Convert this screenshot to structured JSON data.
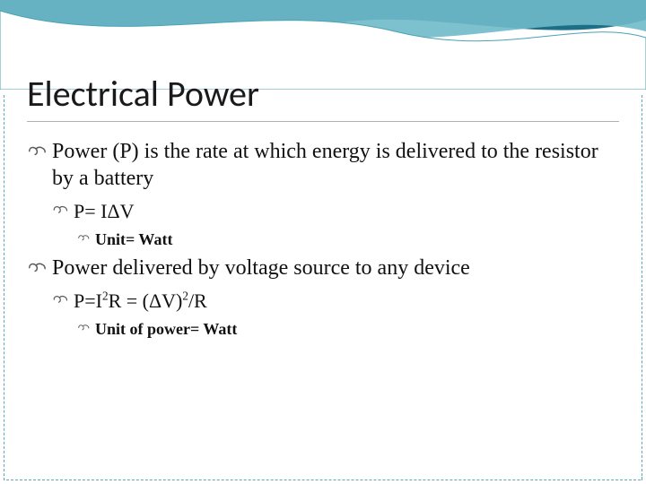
{
  "slide": {
    "title": "Electrical Power",
    "title_fontsize": 40,
    "title_color": "#1a1a1a",
    "bullets": [
      {
        "level": 1,
        "text": "Power (P) is the rate at which energy is delivered to the resistor by a battery",
        "fontsize": 24
      },
      {
        "level": 2,
        "text": "P= IΔV",
        "fontsize": 22
      },
      {
        "level": 3,
        "text": "Unit= Watt",
        "fontsize": 18
      },
      {
        "level": 1,
        "text": "Power delivered by voltage source to any device",
        "fontsize": 24
      },
      {
        "level": 2,
        "html": "P=I<span class='sup'>2</span>R = (ΔV)<span class='sup'>2</span>/R",
        "text_plain": "P=I2R = (ΔV)2/R",
        "fontsize": 22
      },
      {
        "level": 3,
        "text": "Unit of power= Watt",
        "fontsize": 18
      }
    ]
  },
  "theme": {
    "wave_colors": {
      "back_fill": "#1d6f86",
      "mid_fill": "#6fb9c9",
      "front_fill": "#ffffff",
      "front_stroke": "#4aa2b5"
    },
    "border_color": "#5aa8b8",
    "background": "#ffffff",
    "bullet_flourish_stroke": "#5a5a5a"
  }
}
